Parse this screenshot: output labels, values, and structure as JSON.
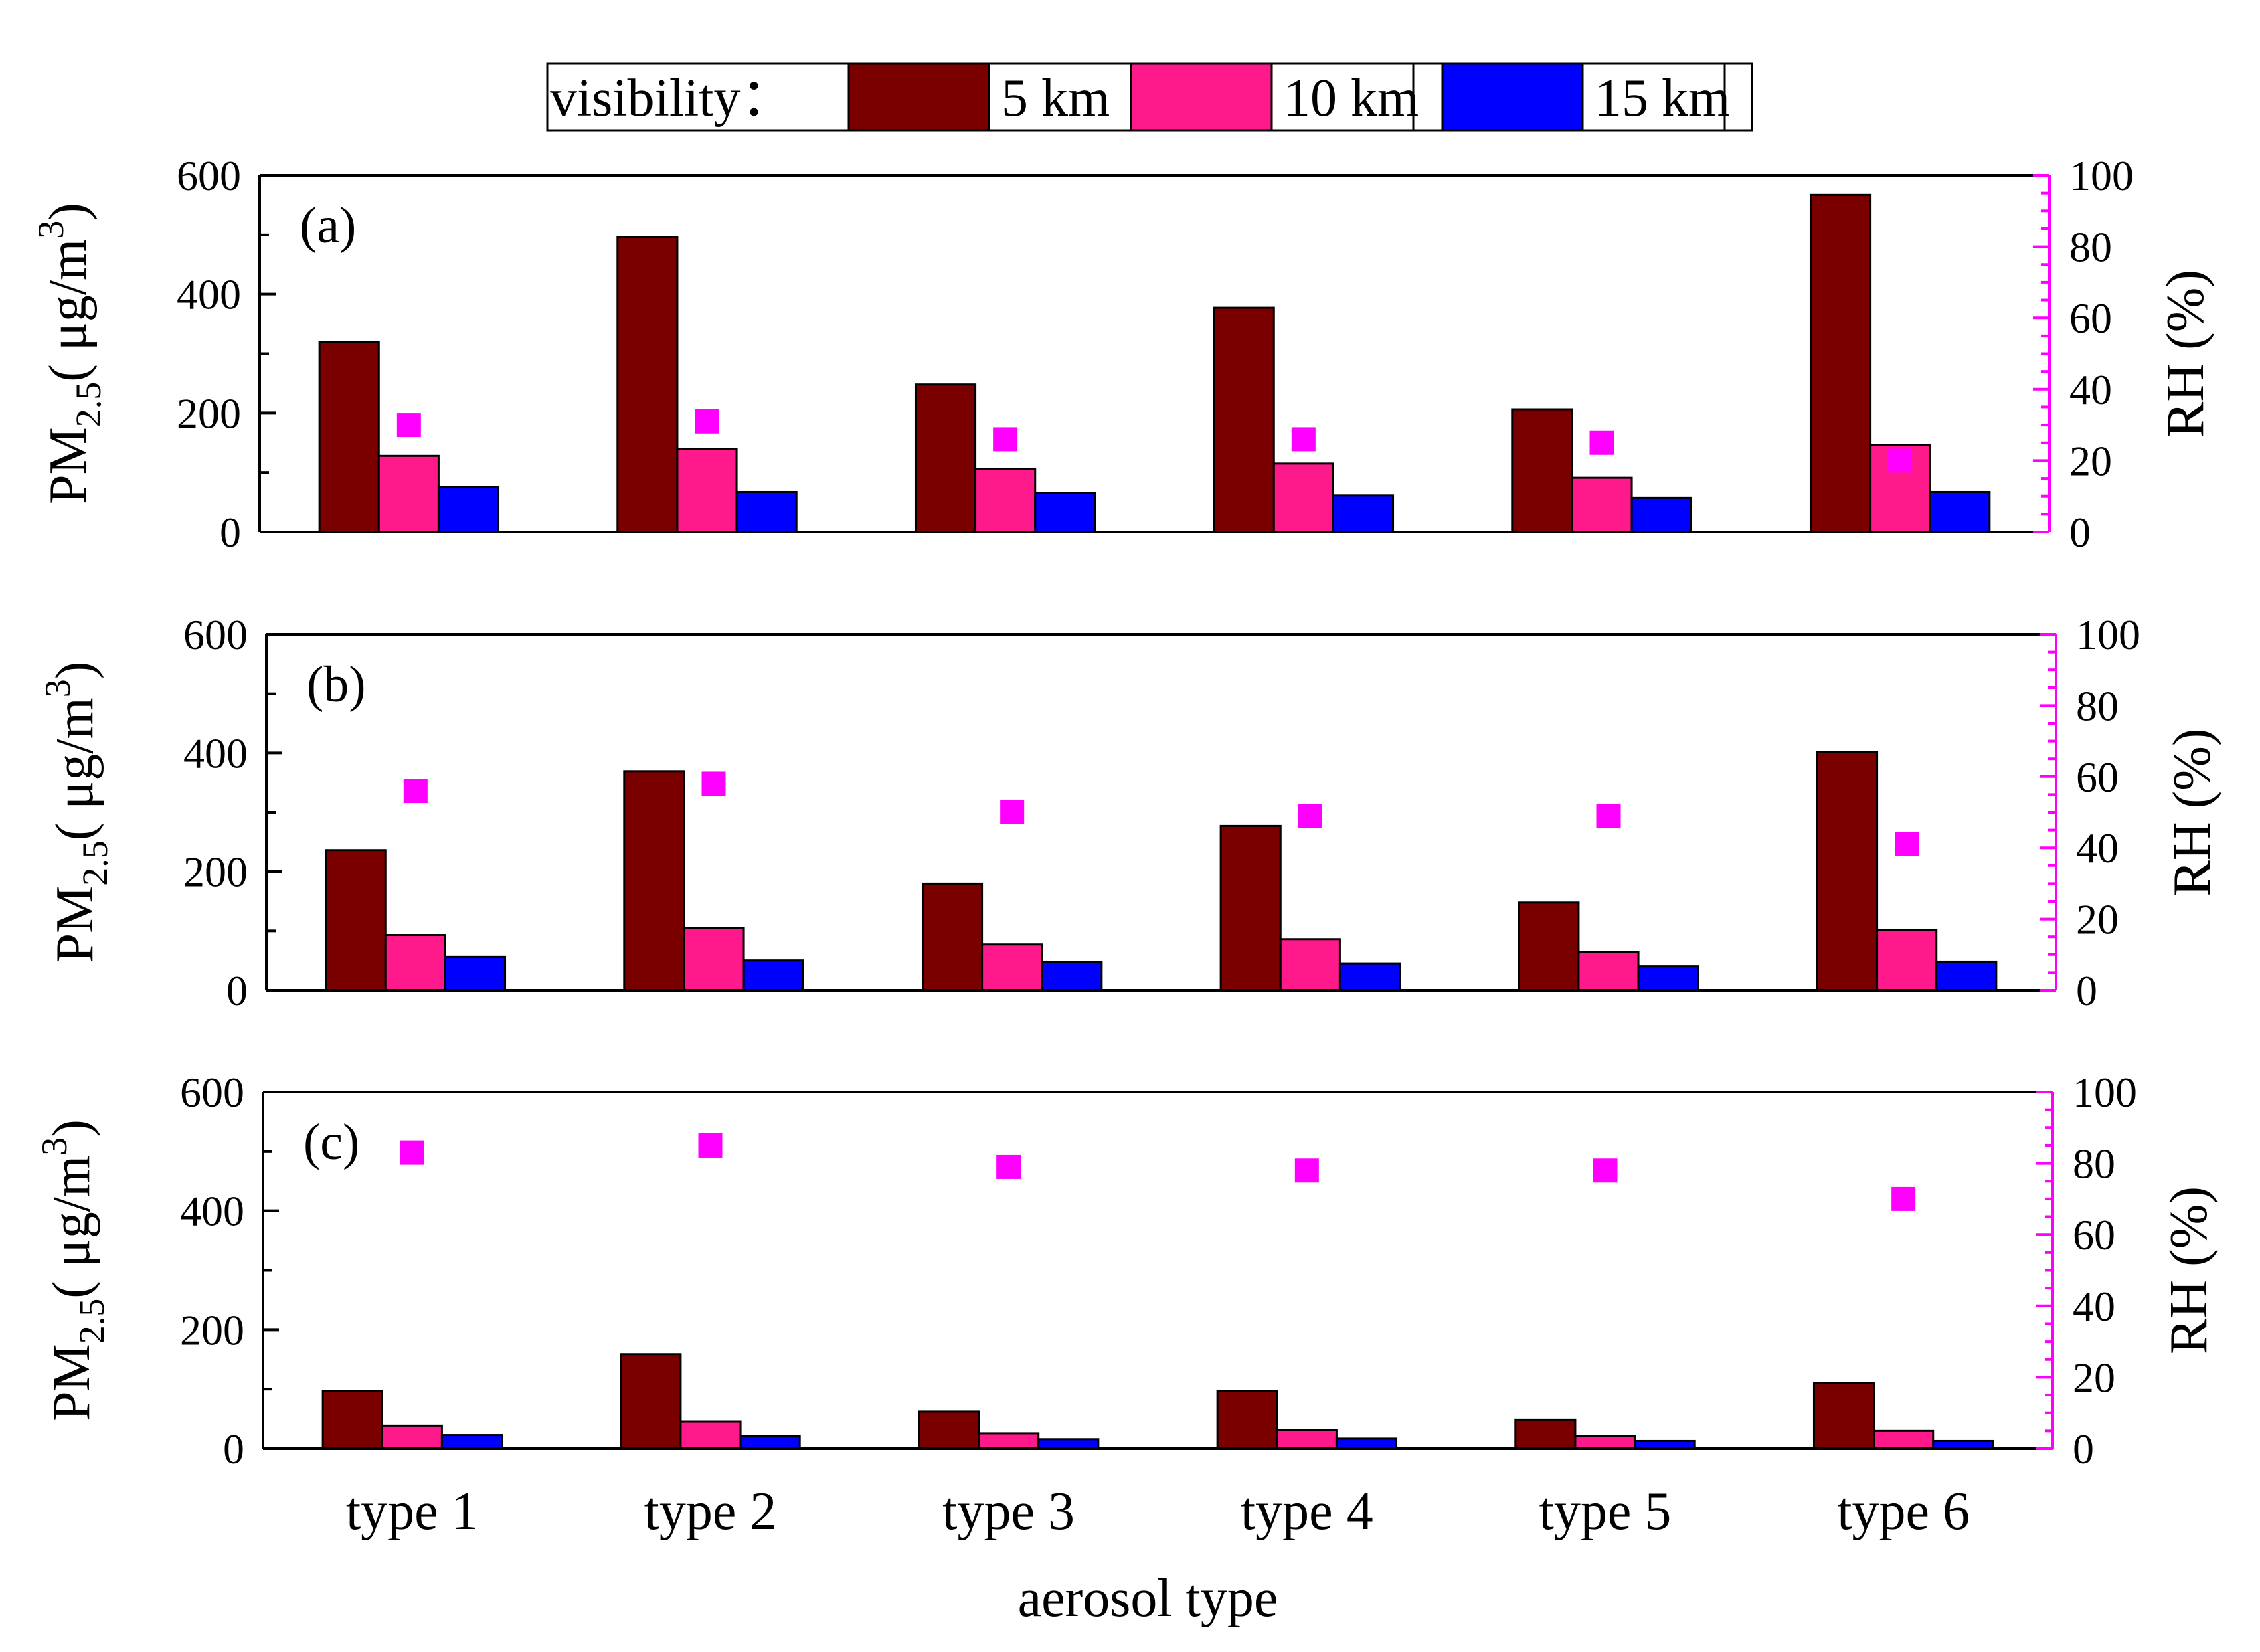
{
  "chart_data": {
    "type": "bar",
    "xlabel": "aerosol type",
    "categories": [
      "type 1",
      "type 2",
      "type 3",
      "type 4",
      "type 5",
      "type 6"
    ],
    "legend": {
      "title": "visibility：",
      "entries": [
        {
          "name": "5 km",
          "color": "#7a0000"
        },
        {
          "name": "10 km",
          "color": "#ff1a8c"
        },
        {
          "name": "15 km",
          "color": "#0000ff"
        }
      ],
      "placement": "top-center"
    },
    "ylabel_left": {
      "main": "PM",
      "sub": "2.5",
      "units_open": "( μg/m",
      "sup": "3",
      "units_close": ")"
    },
    "ylabel_right": "RH (%)",
    "ylim_left": [
      0,
      600
    ],
    "ylim_right": [
      0,
      100
    ],
    "yticks_left": [
      "0",
      "200",
      "400",
      "600"
    ],
    "yticks_right": [
      "0",
      "20",
      "40",
      "60",
      "80",
      "100"
    ],
    "rh_marker_color": "#ff00ff",
    "panels": [
      {
        "label": "(a)",
        "series": [
          {
            "name": "5 km",
            "values": [
              320,
              497,
              248,
              377,
              206,
              567
            ]
          },
          {
            "name": "10 km",
            "values": [
              128,
              140,
              106,
              115,
              91,
              146
            ]
          },
          {
            "name": "15 km",
            "values": [
              76,
              67,
              65,
              61,
              57,
              67
            ]
          }
        ],
        "rh": [
          30,
          31,
          26,
          26,
          25,
          20
        ]
      },
      {
        "label": "(b)",
        "series": [
          {
            "name": "5 km",
            "values": [
              236,
              369,
              180,
              277,
              148,
              401
            ]
          },
          {
            "name": "10 km",
            "values": [
              93,
              105,
              77,
              86,
              64,
              101
            ]
          },
          {
            "name": "15 km",
            "values": [
              56,
              50,
              47,
              45,
              41,
              48
            ]
          }
        ],
        "rh": [
          56,
          58,
          50,
          49,
          49,
          41
        ]
      },
      {
        "label": "(c)",
        "series": [
          {
            "name": "5 km",
            "values": [
              97,
              159,
              62,
              97,
              48,
              110
            ]
          },
          {
            "name": "10 km",
            "values": [
              39,
              45,
              26,
              31,
              21,
              30
            ]
          },
          {
            "name": "15 km",
            "values": [
              23,
              21,
              16,
              17,
              13,
              13
            ]
          }
        ],
        "rh": [
          83,
          85,
          79,
          78,
          78,
          70
        ]
      }
    ]
  }
}
